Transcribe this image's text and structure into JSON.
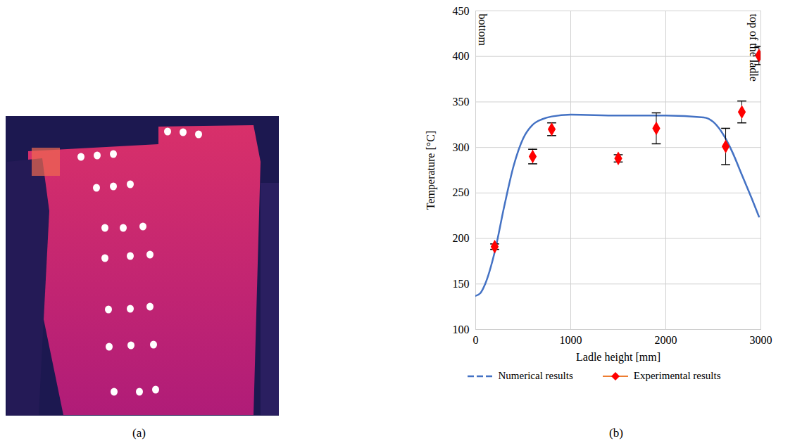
{
  "image_panel": {
    "label": "(a)"
  },
  "chart_data": {
    "type": "line",
    "panel_label": "(b)",
    "x_label": "Ladle height [mm]",
    "y_label": "Temperature [°C]",
    "xlim": [
      0,
      3000
    ],
    "xticks": [
      0,
      1000,
      2000,
      3000
    ],
    "ylim": [
      100,
      450
    ],
    "yticks": [
      100,
      150,
      200,
      250,
      300,
      350,
      400,
      450
    ],
    "grid": true,
    "legend": "bottom",
    "annotations": [
      {
        "text": "bottom",
        "x": 0,
        "y": 450
      },
      {
        "text": "top of the ladle",
        "x": 3000,
        "y": 450
      }
    ],
    "series": [
      {
        "name": "Numerical results",
        "type": "line",
        "color": "#4472c4",
        "line_style": "solid",
        "x": [
          0,
          50,
          100,
          200,
          300,
          400,
          500,
          600,
          700,
          800,
          1000,
          1500,
          2000,
          2400,
          2500,
          2600,
          2700,
          2800,
          2900,
          2980
        ],
        "values": [
          137,
          140,
          150,
          185,
          235,
          280,
          310,
          325,
          331,
          334,
          336,
          335,
          335,
          333,
          328,
          315,
          295,
          270,
          245,
          224
        ]
      },
      {
        "name": "Experimental results",
        "type": "scatter",
        "color": "#ff0000",
        "marker": "diamond",
        "x": [
          200,
          600,
          800,
          1500,
          1900,
          2630,
          2800,
          2980
        ],
        "values": [
          191,
          290,
          320,
          288,
          321,
          301,
          339,
          401
        ],
        "errors": [
          3,
          8,
          7,
          4,
          17,
          20,
          12,
          10
        ]
      }
    ]
  }
}
